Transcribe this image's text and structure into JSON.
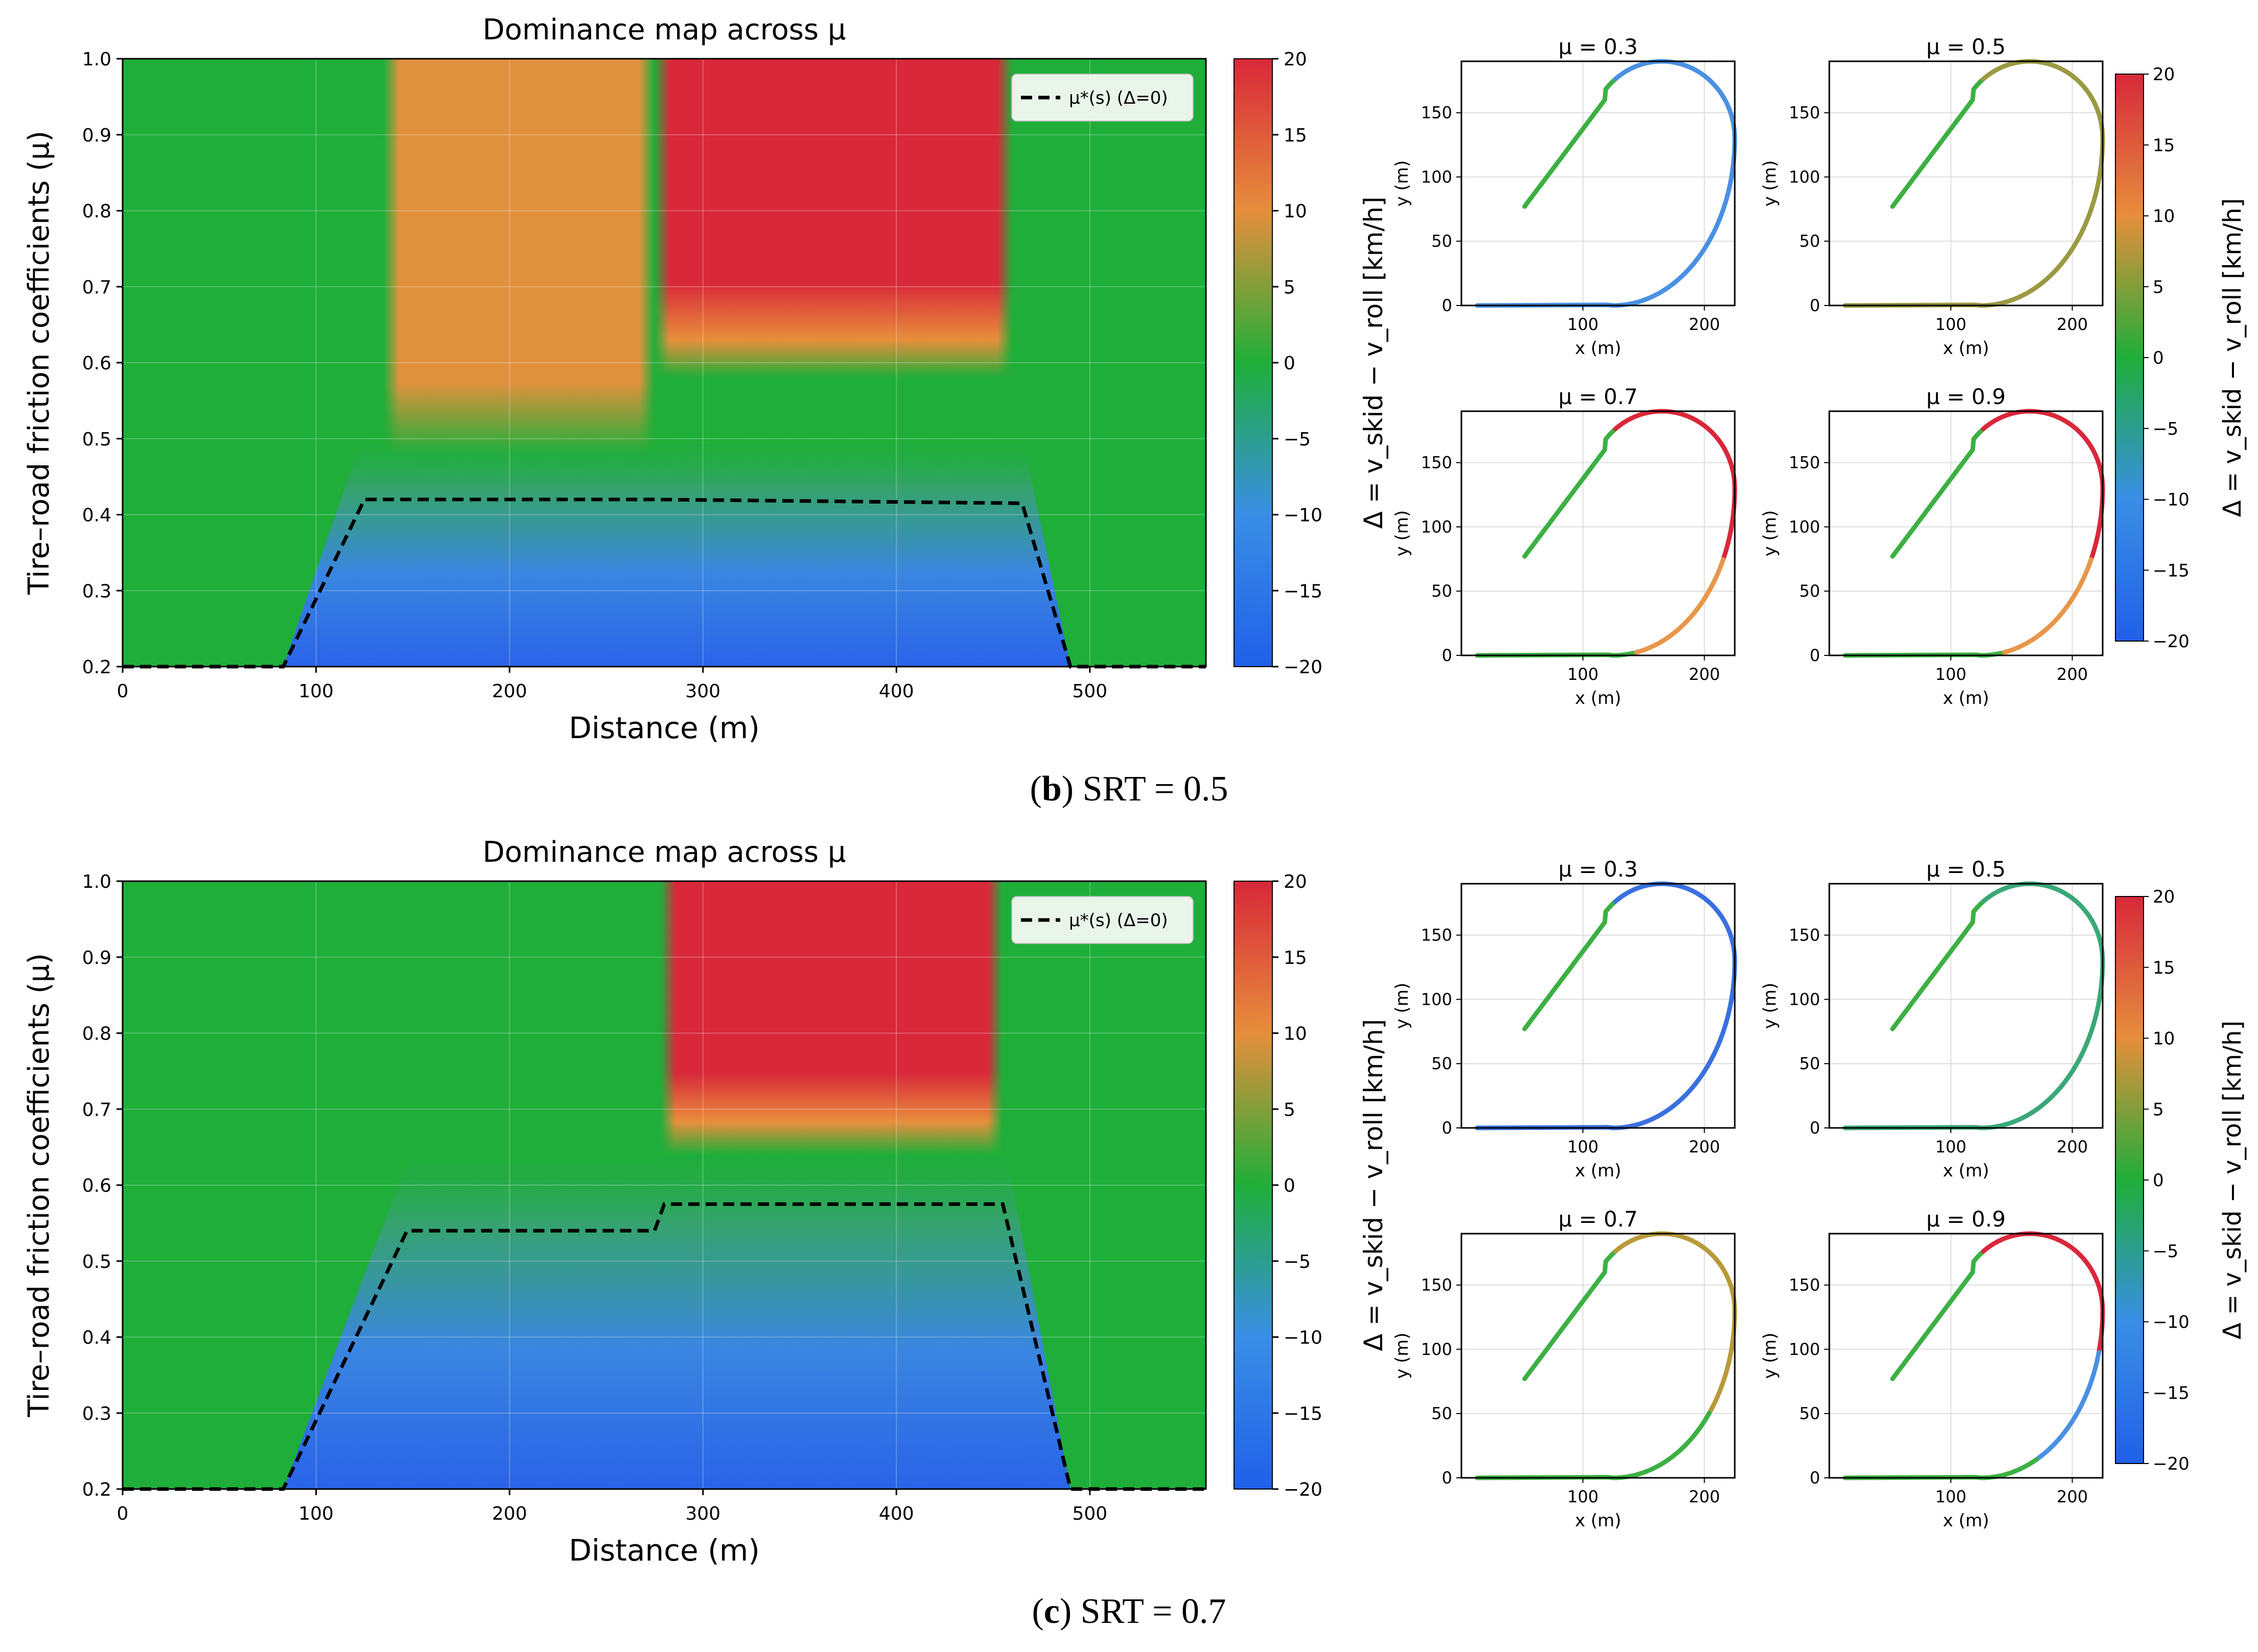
{
  "colors": {
    "scale": [
      "#2060e8",
      "#3a8ee6",
      "#1fae39",
      "#e68e3c",
      "#d8283a"
    ],
    "skid_green": "#1fae39",
    "threshold_line": "#000000",
    "legend_bg": "#eaf5ea"
  },
  "panels": [
    {
      "label": "b",
      "caption_text": "SRT = 0.5",
      "heatmap": {
        "title": "Dominance map across μ",
        "xlabel": "Distance (m)",
        "ylabel": "Tire–road friction coefficients (μ)",
        "xlim": [
          0,
          560
        ],
        "ylim": [
          0.2,
          1.0
        ],
        "xticks": [
          "0",
          "100",
          "200",
          "300",
          "400",
          "500"
        ],
        "yticks": [
          "0.2",
          "0.3",
          "0.4",
          "0.5",
          "0.6",
          "0.7",
          "0.8",
          "0.9",
          "1.0"
        ],
        "legend_label": "μ*(s) (Δ=0)",
        "regions": [
          {
            "name": "band-A",
            "x_start": 135,
            "x_end": 275,
            "value": 10,
            "onset_mu": 0.52
          },
          {
            "name": "band-B",
            "x_start": 275,
            "x_end": 460,
            "value": 20,
            "onset_mu": 0.62
          }
        ],
        "threshold_curve": {
          "x": [
            0,
            83,
            125,
            275,
            465,
            490,
            560
          ],
          "mu": [
            0.2,
            0.2,
            0.42,
            0.42,
            0.415,
            0.2,
            0.2
          ]
        }
      },
      "colorbar": {
        "label": "Δ = v_skid − v_roll [km/h]",
        "ticks": [
          "20",
          "15",
          "10",
          "5",
          "0",
          "−5",
          "−10",
          "−15",
          "−20"
        ],
        "range": [
          -20,
          20
        ]
      },
      "trajectories": {
        "subplots": [
          {
            "title": "μ = 0.3",
            "segments": [
              {
                "to": 0.18,
                "color": "#3cb043"
              },
              {
                "to": 1.0,
                "color": "#4a90e2"
              }
            ]
          },
          {
            "title": "μ = 0.5",
            "segments": [
              {
                "to": 0.18,
                "color": "#3cb043"
              },
              {
                "to": 1.0,
                "color": "#9a9a42"
              }
            ]
          },
          {
            "title": "μ = 0.7",
            "segments": [
              {
                "to": 0.18,
                "color": "#3cb043"
              },
              {
                "to": 0.55,
                "color": "#d8283a"
              },
              {
                "to": 0.78,
                "color": "#e8964a"
              },
              {
                "to": 1.0,
                "color": "#3cb043"
              }
            ]
          },
          {
            "title": "μ = 0.9",
            "segments": [
              {
                "to": 0.18,
                "color": "#3cb043"
              },
              {
                "to": 0.55,
                "color": "#d8283a"
              },
              {
                "to": 0.78,
                "color": "#e8964a"
              },
              {
                "to": 1.0,
                "color": "#3cb043"
              }
            ]
          }
        ],
        "xlabel": "x (m)",
        "ylabel": "y (m)",
        "xticks": [
          "100",
          "200"
        ],
        "yticks": [
          "0",
          "50",
          "100",
          "150"
        ],
        "colorbar_ticks": [
          "20",
          "15",
          "10",
          "5",
          "0",
          "−5",
          "−10",
          "−15",
          "−20"
        ],
        "colorbar_label": "Δ = v_skid − v_roll [km/h]"
      }
    },
    {
      "label": "c",
      "caption_text": "SRT = 0.7",
      "heatmap": {
        "title": "Dominance map across μ",
        "xlabel": "Distance (m)",
        "ylabel": "Tire–road friction coefficients (μ)",
        "xlim": [
          0,
          560
        ],
        "ylim": [
          0.2,
          1.0
        ],
        "xticks": [
          "0",
          "100",
          "200",
          "300",
          "400",
          "500"
        ],
        "yticks": [
          "0.2",
          "0.3",
          "0.4",
          "0.5",
          "0.6",
          "0.7",
          "0.8",
          "0.9",
          "1.0"
        ],
        "legend_label": "μ*(s) (Δ=0)",
        "regions": [
          {
            "name": "band-B",
            "x_start": 278,
            "x_end": 455,
            "value": 20,
            "onset_mu": 0.68
          }
        ],
        "threshold_curve": {
          "x": [
            0,
            83,
            147,
            275,
            280,
            455,
            490,
            560
          ],
          "mu": [
            0.2,
            0.2,
            0.54,
            0.54,
            0.575,
            0.575,
            0.2,
            0.2
          ]
        }
      },
      "colorbar": {
        "label": "Δ = v_skid − v_roll [km/h]",
        "ticks": [
          "20",
          "15",
          "10",
          "5",
          "0",
          "−5",
          "−10",
          "−15",
          "−20"
        ],
        "range": [
          -20,
          20
        ]
      },
      "trajectories": {
        "subplots": [
          {
            "title": "μ = 0.3",
            "segments": [
              {
                "to": 0.18,
                "color": "#3cb043"
              },
              {
                "to": 1.0,
                "color": "#3a70e0"
              }
            ]
          },
          {
            "title": "μ = 0.5",
            "segments": [
              {
                "to": 0.18,
                "color": "#3cb043"
              },
              {
                "to": 1.0,
                "color": "#3aa878"
              }
            ]
          },
          {
            "title": "μ = 0.7",
            "segments": [
              {
                "to": 0.18,
                "color": "#3cb043"
              },
              {
                "to": 0.6,
                "color": "#b89a3a"
              },
              {
                "to": 1.0,
                "color": "#3cb043"
              }
            ]
          },
          {
            "title": "μ = 0.9",
            "segments": [
              {
                "to": 0.18,
                "color": "#3cb043"
              },
              {
                "to": 0.5,
                "color": "#d8283a"
              },
              {
                "to": 0.7,
                "color": "#4a90e2"
              },
              {
                "to": 1.0,
                "color": "#3cb043"
              }
            ]
          }
        ],
        "xlabel": "x (m)",
        "ylabel": "y (m)",
        "xticks": [
          "100",
          "200"
        ],
        "yticks": [
          "0",
          "50",
          "100",
          "150"
        ],
        "colorbar_ticks": [
          "20",
          "15",
          "10",
          "5",
          "0",
          "−5",
          "−10",
          "−15",
          "−20"
        ],
        "colorbar_label": "Δ = v_skid − v_roll [km/h]"
      }
    }
  ],
  "chart_data": [
    {
      "type": "heatmap",
      "panel": "b",
      "title": "Dominance map across μ",
      "xlabel": "Distance (m)",
      "ylabel": "Tire–road friction coefficients (μ)",
      "xlim": [
        0,
        560
      ],
      "ylim": [
        0.2,
        1.0
      ],
      "colorbar_range": [
        -20,
        20
      ],
      "series": [
        {
          "name": "μ*(s) (Δ=0)",
          "x": [
            0,
            83,
            125,
            275,
            465,
            490,
            560
          ],
          "y": [
            0.2,
            0.2,
            0.42,
            0.42,
            0.415,
            0.2,
            0.2
          ]
        }
      ]
    },
    {
      "type": "line",
      "panel": "b",
      "titles": [
        "μ = 0.3",
        "μ = 0.5",
        "μ = 0.7",
        "μ = 0.9"
      ],
      "xlabel": "x (m)",
      "ylabel": "y (m)",
      "xlim": [
        0,
        225
      ],
      "ylim": [
        0,
        190
      ]
    },
    {
      "type": "heatmap",
      "panel": "c",
      "title": "Dominance map across μ",
      "xlabel": "Distance (m)",
      "ylabel": "Tire–road friction coefficients (μ)",
      "xlim": [
        0,
        560
      ],
      "ylim": [
        0.2,
        1.0
      ],
      "colorbar_range": [
        -20,
        20
      ],
      "series": [
        {
          "name": "μ*(s) (Δ=0)",
          "x": [
            0,
            83,
            147,
            275,
            280,
            455,
            490,
            560
          ],
          "y": [
            0.2,
            0.2,
            0.54,
            0.54,
            0.575,
            0.575,
            0.2,
            0.2
          ]
        }
      ]
    },
    {
      "type": "line",
      "panel": "c",
      "titles": [
        "μ = 0.3",
        "μ = 0.5",
        "μ = 0.7",
        "μ = 0.9"
      ],
      "xlabel": "x (m)",
      "ylabel": "y (m)",
      "xlim": [
        0,
        225
      ],
      "ylim": [
        0,
        190
      ]
    }
  ]
}
